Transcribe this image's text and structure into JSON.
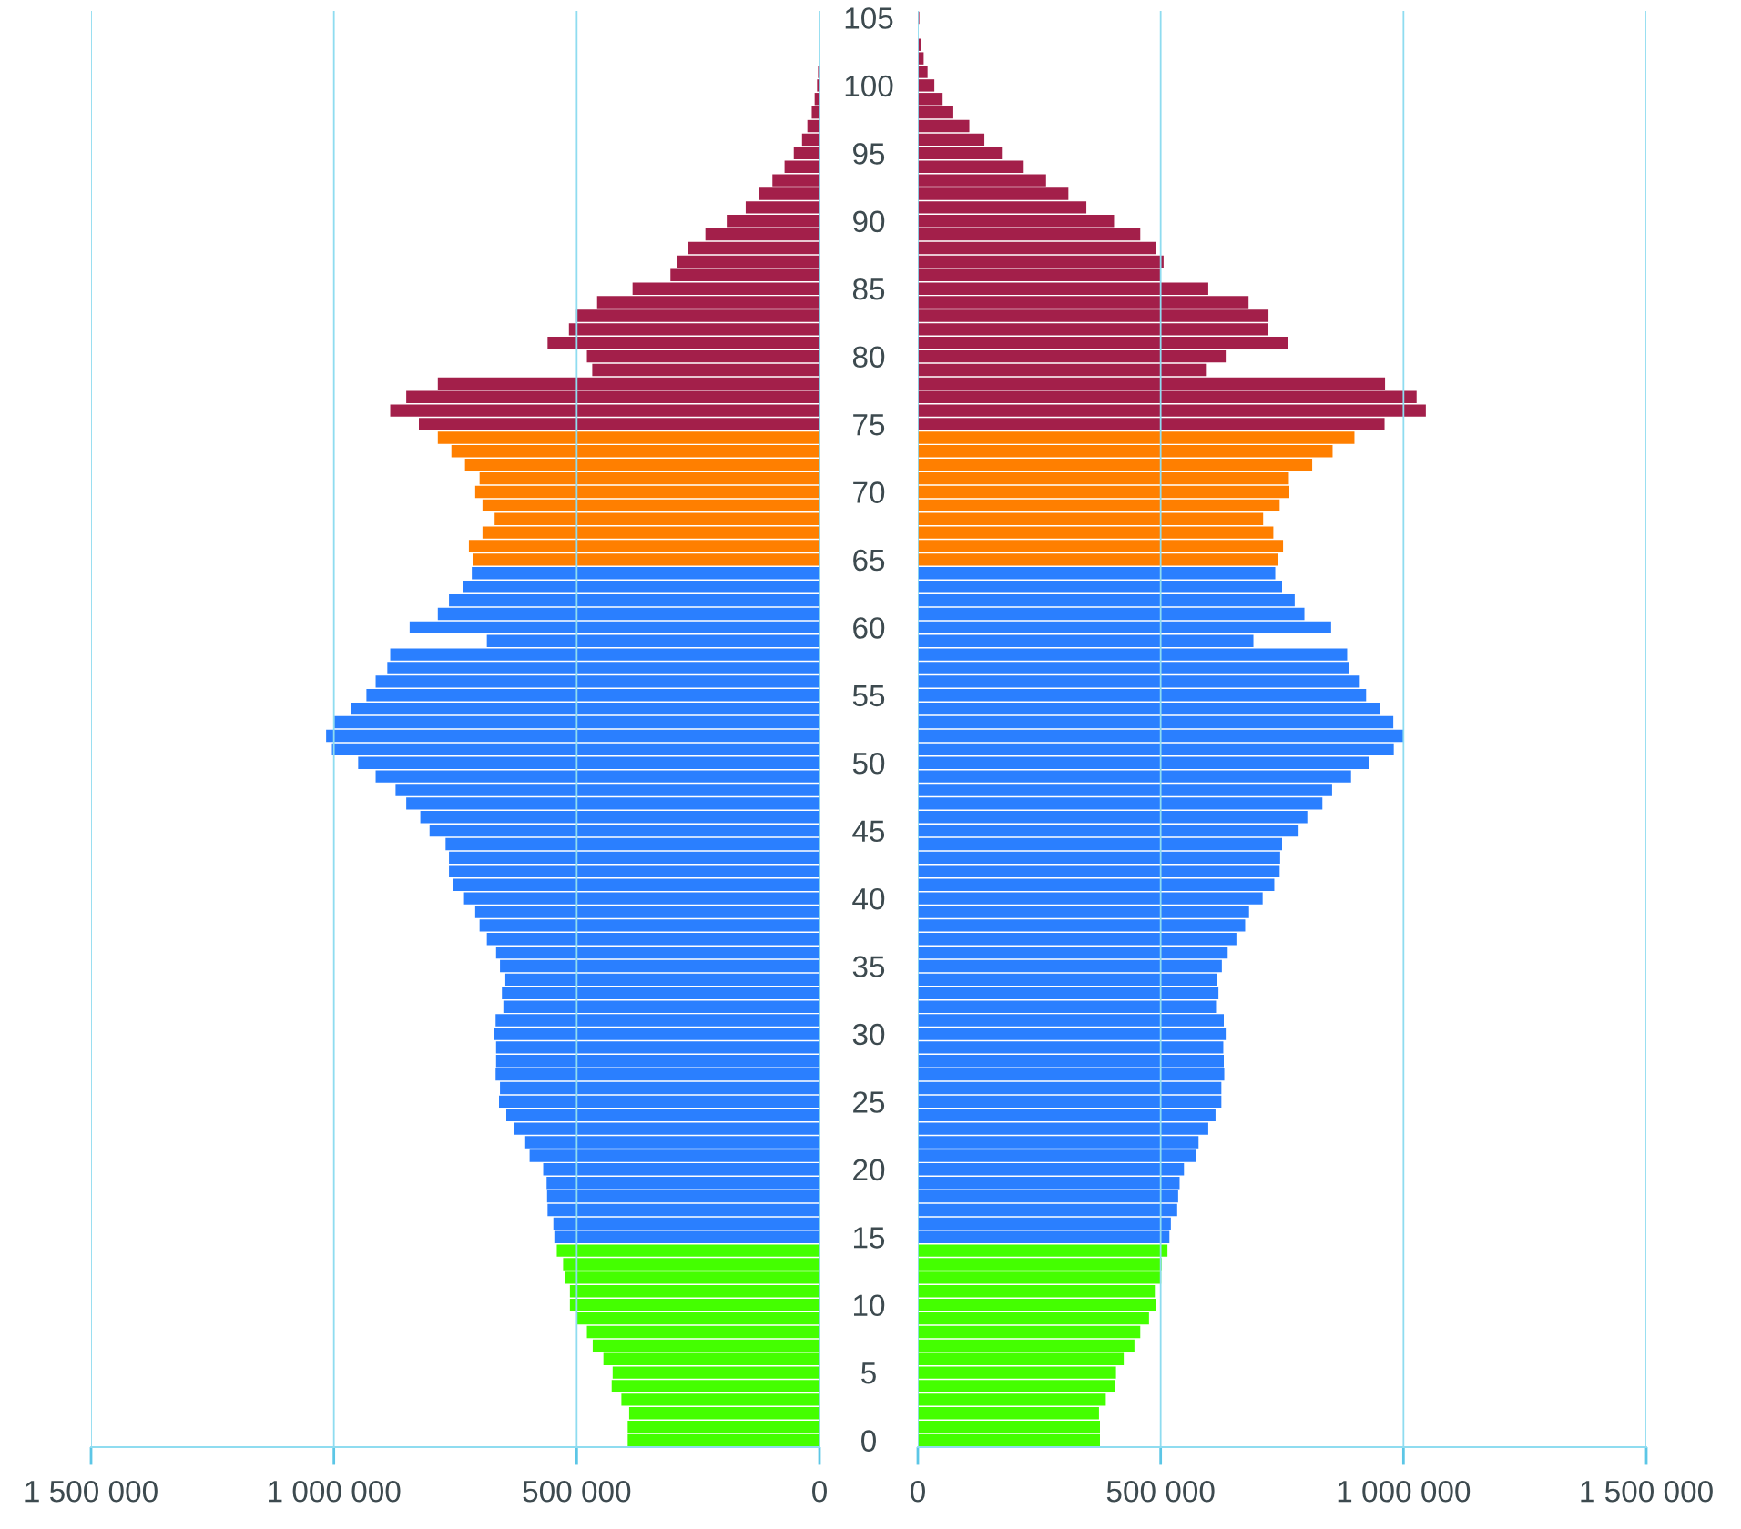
{
  "chart_data": [
    {
      "type": "bar",
      "orientation": "horizontal",
      "grid": "x",
      "categories": [
        "105",
        null,
        null,
        null,
        null,
        "100",
        null,
        null,
        null,
        null,
        "95",
        null,
        null,
        null,
        null,
        "90",
        null,
        null,
        null,
        null,
        "85",
        null,
        null,
        null,
        null,
        "80",
        null,
        null,
        null,
        null,
        "75",
        null,
        null,
        null,
        null,
        "70",
        null,
        null,
        null,
        null,
        "65",
        null,
        null,
        null,
        null,
        "60",
        null,
        null,
        null,
        null,
        "55",
        null,
        null,
        null,
        null,
        "50",
        null,
        null,
        null,
        null,
        "45",
        null,
        null,
        null,
        null,
        "40",
        null,
        null,
        null,
        null,
        "35",
        null,
        null,
        null,
        null,
        "30",
        null,
        null,
        null,
        null,
        "25",
        null,
        null,
        null,
        null,
        "20",
        null,
        null,
        null,
        null,
        "15",
        null,
        null,
        null,
        null,
        "10",
        null,
        null,
        null,
        null,
        "5",
        null,
        null,
        null,
        null,
        "0"
      ],
      "values": [
        0,
        0,
        0,
        null,
        3000,
        5000,
        10000,
        16000,
        25000,
        36000,
        53000,
        72000,
        97000,
        124000,
        152000,
        191000,
        235000,
        270000,
        294000,
        307000,
        385000,
        458000,
        501000,
        516000,
        560000,
        479000,
        468000,
        786000,
        851000,
        884000,
        825000,
        786000,
        758000,
        730000,
        700000,
        709000,
        694000,
        669000,
        694000,
        722000,
        713000,
        716000,
        735000,
        763000,
        786000,
        844000,
        685000,
        884000,
        890000,
        914000,
        933000,
        965000,
        999000,
        1016000,
        1004000,
        950000,
        914000,
        873000,
        851000,
        822000,
        803000,
        770000,
        763000,
        763000,
        755000,
        732000,
        709000,
        700000,
        685000,
        666000,
        658000,
        647000,
        654000,
        651000,
        667000,
        670000,
        666000,
        666000,
        667000,
        658000,
        660000,
        645000,
        629000,
        606000,
        597000,
        569000,
        562000,
        561000,
        560000,
        548000,
        546000,
        541000,
        528000,
        525000,
        514000,
        514000,
        500000,
        479000,
        467000,
        445000,
        426000,
        428000,
        408000,
        392000,
        395000,
        395000
      ],
      "colors": [
        "#a31f4a",
        "#a31f4a",
        "#a31f4a",
        "#a31f4a",
        "#a31f4a",
        "#a31f4a",
        "#a31f4a",
        "#a31f4a",
        "#a31f4a",
        "#a31f4a",
        "#a31f4a",
        "#a31f4a",
        "#a31f4a",
        "#a31f4a",
        "#a31f4a",
        "#a31f4a",
        "#a31f4a",
        "#a31f4a",
        "#a31f4a",
        "#a31f4a",
        "#a31f4a",
        "#a31f4a",
        "#a31f4a",
        "#a31f4a",
        "#a31f4a",
        "#a31f4a",
        "#a31f4a",
        "#a31f4a",
        "#a31f4a",
        "#a31f4a",
        "#a31f4a",
        "#ff7f00",
        "#ff7f00",
        "#ff7f00",
        "#ff7f00",
        "#ff7f00",
        "#ff7f00",
        "#ff7f00",
        "#ff7f00",
        "#ff7f00",
        "#ff7f00",
        "#2a7fff",
        "#2a7fff",
        "#2a7fff",
        "#2a7fff",
        "#2a7fff",
        "#2a7fff",
        "#2a7fff",
        "#2a7fff",
        "#2a7fff",
        "#2a7fff",
        "#2a7fff",
        "#2a7fff",
        "#2a7fff",
        "#2a7fff",
        "#2a7fff",
        "#2a7fff",
        "#2a7fff",
        "#2a7fff",
        "#2a7fff",
        "#2a7fff",
        "#2a7fff",
        "#2a7fff",
        "#2a7fff",
        "#2a7fff",
        "#2a7fff",
        "#2a7fff",
        "#2a7fff",
        "#2a7fff",
        "#2a7fff",
        "#2a7fff",
        "#2a7fff",
        "#2a7fff",
        "#2a7fff",
        "#2a7fff",
        "#2a7fff",
        "#2a7fff",
        "#2a7fff",
        "#2a7fff",
        "#2a7fff",
        "#2a7fff",
        "#2a7fff",
        "#2a7fff",
        "#2a7fff",
        "#2a7fff",
        "#2a7fff",
        "#2a7fff",
        "#2a7fff",
        "#2a7fff",
        "#2a7fff",
        "#2a7fff",
        "#44ff00",
        "#44ff00",
        "#44ff00",
        "#44ff00",
        "#44ff00",
        "#44ff00",
        "#44ff00",
        "#44ff00",
        "#44ff00",
        "#44ff00",
        "#44ff00",
        "#44ff00",
        "#44ff00",
        "#44ff00",
        "#44ff00"
      ],
      "xlim": [
        1500000,
        0
      ],
      "xticks": [
        0,
        {
          "value": 500000,
          "label": "500 000"
        },
        {
          "value": 1000000,
          "label": "1 000 000"
        },
        {
          "value": 1500000,
          "label": "1 500 000"
        }
      ]
    },
    {
      "type": "bar",
      "orientation": "horizontal",
      "tick_labels": "x",
      "grid": "x",
      "categories": [
        "105",
        null,
        null,
        null,
        null,
        "100",
        null,
        null,
        null,
        null,
        "95",
        null,
        null,
        null,
        null,
        "90",
        null,
        null,
        null,
        null,
        "85",
        null,
        null,
        null,
        null,
        "80",
        null,
        null,
        null,
        null,
        "75",
        null,
        null,
        null,
        null,
        "70",
        null,
        null,
        null,
        null,
        "65",
        null,
        null,
        null,
        null,
        "60",
        null,
        null,
        null,
        null,
        "55",
        null,
        null,
        null,
        null,
        "50",
        null,
        null,
        null,
        null,
        "45",
        null,
        null,
        null,
        null,
        "40",
        null,
        null,
        null,
        null,
        "35",
        null,
        null,
        null,
        null,
        "30",
        null,
        null,
        null,
        null,
        "25",
        null,
        null,
        null,
        null,
        "20",
        null,
        null,
        null,
        null,
        "15",
        null,
        null,
        null,
        null,
        "10",
        null,
        null,
        null,
        null,
        "5",
        null,
        null,
        null,
        null,
        "0"
      ],
      "values": [
        3000,
        null,
        7000,
        12000,
        20000,
        34000,
        51000,
        73000,
        106000,
        137000,
        173000,
        218000,
        264000,
        310000,
        347000,
        404000,
        458000,
        490000,
        506000,
        499000,
        598000,
        681000,
        722000,
        721000,
        763000,
        634000,
        595000,
        962000,
        1027000,
        1046000,
        961000,
        899000,
        854000,
        812000,
        764000,
        765000,
        745000,
        711000,
        732000,
        752000,
        741000,
        736000,
        750000,
        776000,
        796000,
        851000,
        691000,
        884000,
        888000,
        910000,
        923000,
        952000,
        979000,
        1000000,
        980000,
        929000,
        892000,
        853000,
        833000,
        802000,
        784000,
        750000,
        746000,
        745000,
        734000,
        710000,
        682000,
        674000,
        656000,
        638000,
        626000,
        615000,
        619000,
        614000,
        630000,
        634000,
        629000,
        630000,
        631000,
        625000,
        625000,
        613000,
        598000,
        578000,
        573000,
        548000,
        539000,
        536000,
        534000,
        521000,
        518000,
        514000,
        502000,
        501000,
        488000,
        490000,
        476000,
        458000,
        446000,
        424000,
        408000,
        406000,
        387000,
        373000,
        375000,
        375000
      ],
      "colors": [
        "#a31f4a",
        "#a31f4a",
        "#a31f4a",
        "#a31f4a",
        "#a31f4a",
        "#a31f4a",
        "#a31f4a",
        "#a31f4a",
        "#a31f4a",
        "#a31f4a",
        "#a31f4a",
        "#a31f4a",
        "#a31f4a",
        "#a31f4a",
        "#a31f4a",
        "#a31f4a",
        "#a31f4a",
        "#a31f4a",
        "#a31f4a",
        "#a31f4a",
        "#a31f4a",
        "#a31f4a",
        "#a31f4a",
        "#a31f4a",
        "#a31f4a",
        "#a31f4a",
        "#a31f4a",
        "#a31f4a",
        "#a31f4a",
        "#a31f4a",
        "#a31f4a",
        "#ff7f00",
        "#ff7f00",
        "#ff7f00",
        "#ff7f00",
        "#ff7f00",
        "#ff7f00",
        "#ff7f00",
        "#ff7f00",
        "#ff7f00",
        "#ff7f00",
        "#2a7fff",
        "#2a7fff",
        "#2a7fff",
        "#2a7fff",
        "#2a7fff",
        "#2a7fff",
        "#2a7fff",
        "#2a7fff",
        "#2a7fff",
        "#2a7fff",
        "#2a7fff",
        "#2a7fff",
        "#2a7fff",
        "#2a7fff",
        "#2a7fff",
        "#2a7fff",
        "#2a7fff",
        "#2a7fff",
        "#2a7fff",
        "#2a7fff",
        "#2a7fff",
        "#2a7fff",
        "#2a7fff",
        "#2a7fff",
        "#2a7fff",
        "#2a7fff",
        "#2a7fff",
        "#2a7fff",
        "#2a7fff",
        "#2a7fff",
        "#2a7fff",
        "#2a7fff",
        "#2a7fff",
        "#2a7fff",
        "#2a7fff",
        "#2a7fff",
        "#2a7fff",
        "#2a7fff",
        "#2a7fff",
        "#2a7fff",
        "#2a7fff",
        "#2a7fff",
        "#2a7fff",
        "#2a7fff",
        "#2a7fff",
        "#2a7fff",
        "#2a7fff",
        "#2a7fff",
        "#2a7fff",
        "#2a7fff",
        "#44ff00",
        "#44ff00",
        "#44ff00",
        "#44ff00",
        "#44ff00",
        "#44ff00",
        "#44ff00",
        "#44ff00",
        "#44ff00",
        "#44ff00",
        "#44ff00",
        "#44ff00",
        "#44ff00",
        "#44ff00",
        "#44ff00"
      ],
      "xlim": [
        0,
        1500000
      ],
      "xticks": [
        0,
        {
          "value": 500000,
          "label": "500 000"
        },
        {
          "value": 1000000,
          "label": "1 000 000"
        },
        {
          "value": 1500000,
          "label": "1 500 000"
        }
      ]
    }
  ]
}
